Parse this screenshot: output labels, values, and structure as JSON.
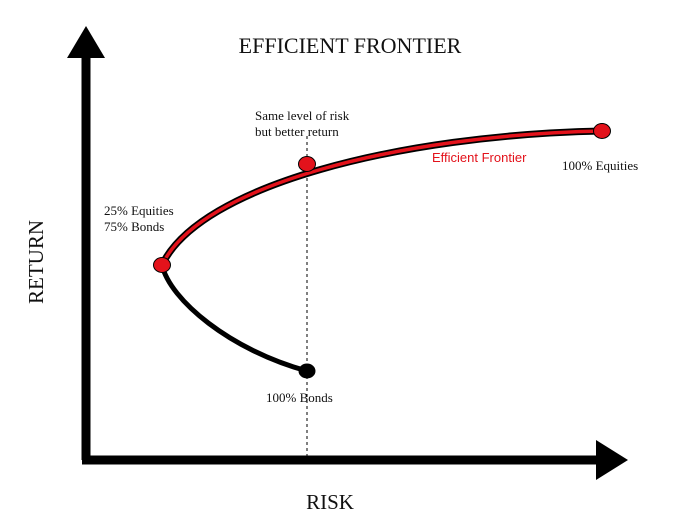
{
  "title": "EFFICIENT FRONTIER",
  "x_axis_label": "RISK",
  "y_axis_label": "RETURN",
  "frontier_label": "Efficient Frontier",
  "callout_line1": "Same level of risk",
  "callout_line2": "but better return",
  "point_mix_line1": "25% Equities",
  "point_mix_line2": "75% Bonds",
  "point_equities": "100% Equities",
  "point_bonds": "100% Bonds",
  "colors": {
    "frontier": "#e3121b",
    "frontier_label": "#e3121b",
    "lower_curve": "#000000",
    "axes": "#000000",
    "point_red": "#e3121b",
    "point_black": "#000000"
  }
}
